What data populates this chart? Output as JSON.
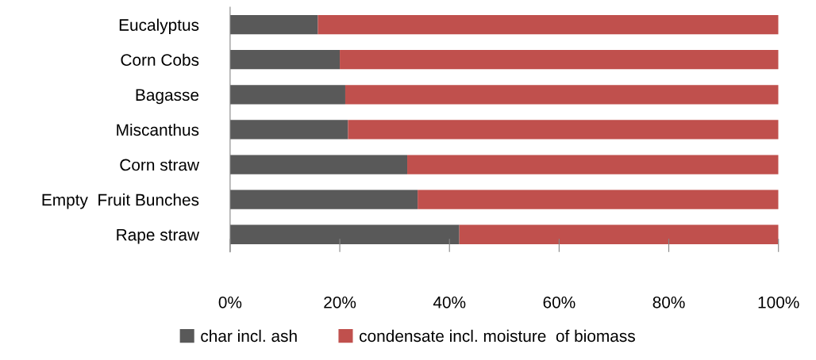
{
  "chart_data": {
    "type": "bar",
    "orientation": "horizontal",
    "stacked": true,
    "categories": [
      "Eucalyptus",
      "Corn Cobs",
      "Bagasse",
      "Miscanthus",
      "Corn straw",
      "Empty  Fruit Bunches",
      "Rape straw"
    ],
    "series": [
      {
        "name": "char incl. ash",
        "color": "#595959",
        "values": [
          16,
          20,
          21,
          21.5,
          32.3,
          34.2,
          41.8
        ]
      },
      {
        "name": "condensate incl. moisture  of biomass",
        "color": "#c0504d",
        "values": [
          84,
          80,
          79,
          78.5,
          67.7,
          65.8,
          58.2
        ]
      }
    ],
    "xlim": [
      0,
      100
    ],
    "xticks": [
      {
        "value": 0,
        "label": "0%"
      },
      {
        "value": 20,
        "label": "20%"
      },
      {
        "value": 40,
        "label": "40%"
      },
      {
        "value": 60,
        "label": "60%"
      },
      {
        "value": 80,
        "label": "80%"
      },
      {
        "value": 100,
        "label": "100%"
      }
    ],
    "grid": false,
    "legend": "bottom"
  }
}
